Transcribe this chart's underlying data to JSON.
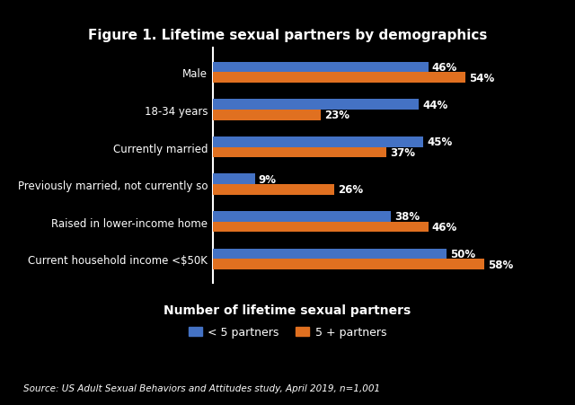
{
  "title": "Figure 1. Lifetime sexual partners by demographics",
  "categories": [
    "Current household income <$50K",
    "Raised in lower-income home",
    "Previously married, not currently so",
    "Currently married",
    "18-34 years",
    "Male"
  ],
  "less_than_5": [
    50,
    38,
    9,
    45,
    44,
    46
  ],
  "five_plus": [
    58,
    46,
    26,
    37,
    23,
    54
  ],
  "color_less5": "#4472C4",
  "color_5plus": "#E07020",
  "legend_label_less5": "< 5 partners",
  "legend_label_5plus": "5 + partners",
  "legend_title": "Number of lifetime sexual partners",
  "source_text": "Source: US Adult Sexual Behaviors and Attitudes study, April 2019, n=1,001",
  "bg_color": "#000000",
  "text_color": "#FFFFFF",
  "bar_height": 0.28,
  "xlim": [
    0,
    70
  ]
}
